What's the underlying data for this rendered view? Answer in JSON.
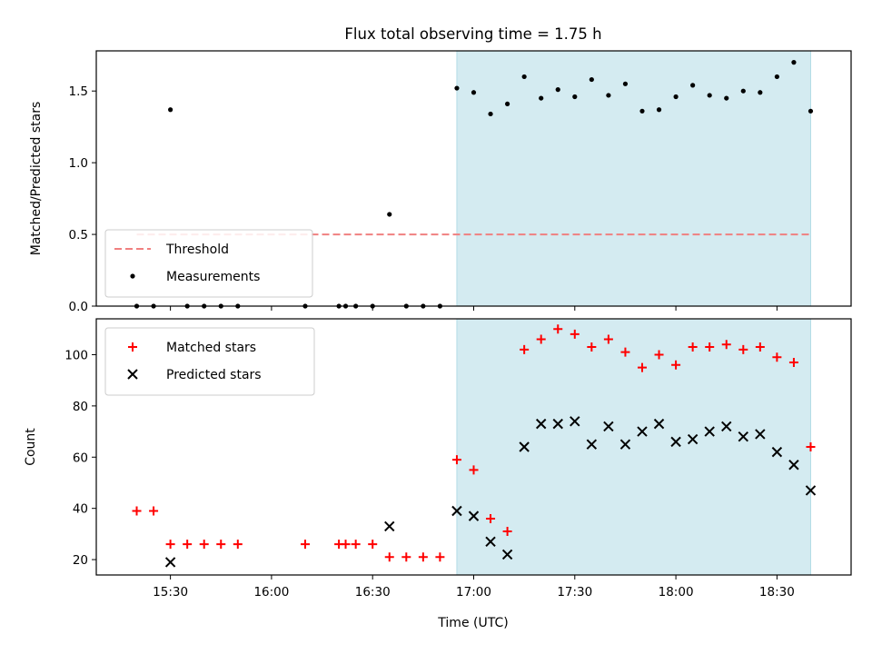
{
  "chart_data": {
    "type": "scatter",
    "title": "Flux total observing time = 1.75 h",
    "xlabel": "Time (UTC)",
    "x_ticks": [
      "15:30",
      "16:00",
      "16:30",
      "17:00",
      "17:30",
      "18:00",
      "18:30"
    ],
    "highlight_span": [
      "16:55",
      "18:40"
    ],
    "highlight_color": "#d4ebf1",
    "panels": [
      {
        "ylabel": "Matched/Predicted stars",
        "ylim": [
          0,
          1.78
        ],
        "y_ticks": [
          "0.0",
          "0.5",
          "1.0",
          "1.5"
        ],
        "legend": "lower-left",
        "threshold": {
          "name": "Threshold",
          "value": 0.5,
          "color": "#f08080",
          "x_range": [
            "15:20",
            "18:40"
          ]
        },
        "series": [
          {
            "name": "Measurements",
            "marker": "dot",
            "color": "#000000",
            "x": [
              "15:20",
              "15:25",
              "15:30",
              "15:35",
              "15:40",
              "15:45",
              "15:50",
              "16:10",
              "16:20",
              "16:22",
              "16:25",
              "16:30",
              "16:35",
              "16:40",
              "16:45",
              "16:50",
              "16:55",
              "17:00",
              "17:05",
              "17:10",
              "17:15",
              "17:20",
              "17:25",
              "17:30",
              "17:35",
              "17:40",
              "17:45",
              "17:50",
              "17:55",
              "18:00",
              "18:05",
              "18:10",
              "18:15",
              "18:20",
              "18:25",
              "18:30",
              "18:35",
              "18:40"
            ],
            "y": [
              0,
              0,
              1.37,
              0,
              0,
              0,
              0,
              0,
              0,
              0,
              0,
              0,
              0.64,
              0,
              0,
              0,
              1.52,
              1.49,
              1.34,
              1.41,
              1.6,
              1.45,
              1.51,
              1.46,
              1.58,
              1.47,
              1.55,
              1.36,
              1.37,
              1.46,
              1.54,
              1.47,
              1.45,
              1.5,
              1.49,
              1.6,
              1.7,
              1.36
            ]
          }
        ]
      },
      {
        "ylabel": "Count",
        "ylim": [
          14,
          114
        ],
        "y_ticks": [
          "20",
          "40",
          "60",
          "80",
          "100"
        ],
        "legend": "upper-left",
        "series": [
          {
            "name": "Matched stars",
            "marker": "plus",
            "color": "#ff0000",
            "x": [
              "15:20",
              "15:25",
              "15:30",
              "15:35",
              "15:40",
              "15:45",
              "15:50",
              "16:10",
              "16:20",
              "16:22",
              "16:25",
              "16:30",
              "16:35",
              "16:40",
              "16:45",
              "16:50",
              "16:55",
              "17:00",
              "17:05",
              "17:10",
              "17:15",
              "17:20",
              "17:25",
              "17:30",
              "17:35",
              "17:40",
              "17:45",
              "17:50",
              "17:55",
              "18:00",
              "18:05",
              "18:10",
              "18:15",
              "18:20",
              "18:25",
              "18:30",
              "18:35",
              "18:40"
            ],
            "y": [
              39,
              39,
              26,
              26,
              26,
              26,
              26,
              26,
              26,
              26,
              26,
              26,
              21,
              21,
              21,
              21,
              59,
              55,
              36,
              31,
              102,
              106,
              110,
              108,
              103,
              106,
              101,
              95,
              100,
              96,
              103,
              103,
              104,
              102,
              103,
              99,
              97,
              64
            ]
          },
          {
            "name": "Predicted stars",
            "marker": "x",
            "color": "#000000",
            "x": [
              "15:30",
              "16:35",
              "16:55",
              "17:00",
              "17:05",
              "17:10",
              "17:15",
              "17:20",
              "17:25",
              "17:30",
              "17:35",
              "17:40",
              "17:45",
              "17:50",
              "17:55",
              "18:00",
              "18:05",
              "18:10",
              "18:15",
              "18:20",
              "18:25",
              "18:30",
              "18:35",
              "18:40"
            ],
            "y": [
              19,
              33,
              39,
              37,
              27,
              22,
              64,
              73,
              73,
              74,
              65,
              72,
              65,
              70,
              73,
              66,
              67,
              70,
              72,
              68,
              69,
              62,
              57,
              47
            ]
          }
        ]
      }
    ]
  }
}
